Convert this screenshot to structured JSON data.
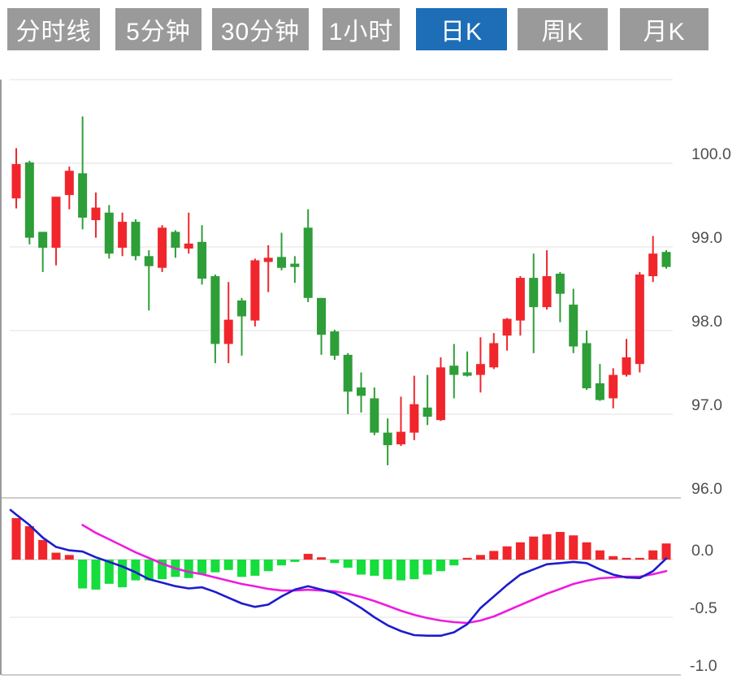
{
  "toolbar": {
    "tabs": [
      {
        "label": "分时线",
        "active": false
      },
      {
        "label": "5分钟",
        "active": false
      },
      {
        "label": "30分钟",
        "active": false
      },
      {
        "label": "1小时",
        "active": false
      },
      {
        "label": "日K",
        "active": true
      },
      {
        "label": "周K",
        "active": false
      },
      {
        "label": "月K",
        "active": false
      }
    ]
  },
  "colors": {
    "tab_bg": "#9a9a9a",
    "tab_active_bg": "#1d6eb7",
    "tab_text": "#ffffff",
    "candle_up": "#f0262c",
    "candle_down": "#2e9e38",
    "macd_bar_up": "#f0262c",
    "macd_bar_down": "#14dd3c",
    "dif_line": "#1c1ccd",
    "dea_line": "#ee1bdf",
    "grid": "#e2e2e2",
    "panel_border": "#cccccc",
    "left_border": "#9a9a9a",
    "axis_text": "#4f4f4f"
  },
  "chart_data": {
    "type": "candlestick+macd",
    "selected_timeframe": "日K",
    "legend_position": "none",
    "grid": "horizontal-only",
    "price_axis": {
      "tick_labels": [
        "100.0",
        "99.0",
        "98.0",
        "97.0",
        "96.0"
      ],
      "tick_values": [
        100.0,
        99.0,
        98.0,
        97.0,
        96.0
      ],
      "ylim": [
        95.9,
        101.0
      ]
    },
    "candles_ohlc_order": [
      "open",
      "close",
      "high",
      "low"
    ],
    "candles": [
      [
        99.58,
        99.99,
        100.18,
        99.46
      ],
      [
        100.01,
        99.11,
        100.03,
        99.03
      ],
      [
        99.18,
        98.99,
        99.18,
        98.7
      ],
      [
        98.99,
        99.6,
        99.6,
        98.78
      ],
      [
        99.62,
        99.91,
        99.96,
        99.45
      ],
      [
        99.88,
        99.35,
        100.56,
        99.21
      ],
      [
        99.32,
        99.47,
        99.65,
        99.11
      ],
      [
        99.41,
        98.92,
        99.5,
        98.86
      ],
      [
        98.99,
        99.3,
        99.41,
        98.89
      ],
      [
        99.3,
        98.89,
        99.33,
        98.84
      ],
      [
        98.89,
        98.77,
        98.96,
        98.24
      ],
      [
        98.75,
        99.23,
        99.26,
        98.7
      ],
      [
        99.18,
        98.99,
        99.2,
        98.87
      ],
      [
        98.98,
        99.04,
        99.41,
        98.92
      ],
      [
        99.06,
        98.62,
        99.26,
        98.55
      ],
      [
        98.65,
        97.84,
        98.67,
        97.61
      ],
      [
        97.84,
        98.13,
        98.58,
        97.61
      ],
      [
        98.36,
        98.17,
        98.39,
        97.7
      ],
      [
        98.12,
        98.84,
        98.86,
        98.05
      ],
      [
        98.82,
        98.87,
        99.02,
        98.46
      ],
      [
        98.88,
        98.75,
        99.17,
        98.72
      ],
      [
        98.8,
        98.76,
        98.89,
        98.57
      ],
      [
        99.23,
        98.39,
        99.45,
        98.34
      ],
      [
        98.39,
        97.95,
        98.39,
        97.71
      ],
      [
        97.99,
        97.7,
        98.01,
        97.65
      ],
      [
        97.71,
        97.27,
        97.73,
        97.0
      ],
      [
        97.32,
        97.22,
        97.5,
        97.02
      ],
      [
        97.19,
        96.78,
        97.32,
        96.75
      ],
      [
        96.78,
        96.63,
        96.95,
        96.39
      ],
      [
        96.64,
        96.79,
        97.21,
        96.62
      ],
      [
        96.78,
        97.12,
        97.46,
        96.69
      ],
      [
        97.08,
        96.97,
        97.47,
        96.87
      ],
      [
        96.93,
        97.56,
        97.68,
        96.92
      ],
      [
        97.58,
        97.47,
        97.84,
        97.19
      ],
      [
        97.5,
        97.46,
        97.75,
        97.45
      ],
      [
        97.47,
        97.6,
        97.92,
        97.26
      ],
      [
        97.56,
        97.85,
        97.97,
        97.54
      ],
      [
        97.94,
        98.14,
        98.15,
        97.76
      ],
      [
        98.12,
        98.63,
        98.65,
        97.94
      ],
      [
        98.63,
        98.28,
        98.92,
        97.73
      ],
      [
        98.28,
        98.65,
        98.96,
        98.25
      ],
      [
        98.68,
        98.44,
        98.7,
        98.1
      ],
      [
        98.31,
        97.81,
        98.5,
        97.73
      ],
      [
        97.85,
        97.31,
        98.0,
        97.29
      ],
      [
        97.37,
        97.17,
        97.6,
        97.16
      ],
      [
        97.19,
        97.47,
        97.55,
        97.07
      ],
      [
        97.47,
        97.68,
        97.9,
        97.45
      ],
      [
        97.6,
        98.67,
        98.7,
        97.5
      ],
      [
        98.65,
        98.92,
        99.13,
        98.58
      ],
      [
        98.94,
        98.76,
        98.96,
        98.74
      ]
    ],
    "macd_axis": {
      "tick_labels": [
        "0.0",
        "-0.5",
        "-1.0"
      ],
      "tick_values": [
        0.0,
        -0.5,
        -1.0
      ],
      "ylim": [
        0.55,
        -1.0
      ]
    },
    "macd_histogram": [
      0.36,
      0.29,
      0.17,
      0.06,
      0.04,
      -0.25,
      -0.26,
      -0.21,
      -0.24,
      -0.18,
      -0.18,
      -0.17,
      -0.15,
      -0.16,
      -0.13,
      -0.11,
      -0.09,
      -0.15,
      -0.14,
      -0.1,
      -0.05,
      -0.02,
      0.05,
      0.02,
      -0.03,
      -0.07,
      -0.13,
      -0.14,
      -0.17,
      -0.18,
      -0.17,
      -0.13,
      -0.1,
      -0.05,
      0.015,
      0.04,
      0.075,
      0.115,
      0.15,
      0.2,
      0.22,
      0.24,
      0.21,
      0.15,
      0.08,
      0.03,
      0.015,
      0.015,
      0.08,
      0.14
    ],
    "dif_line": {
      "lead_in_value": 0.43,
      "values": [
        0.39,
        0.3,
        0.19,
        0.11,
        0.08,
        0.07,
        0.02,
        -0.02,
        -0.06,
        -0.11,
        -0.17,
        -0.2,
        -0.23,
        -0.25,
        -0.24,
        -0.28,
        -0.33,
        -0.38,
        -0.41,
        -0.39,
        -0.32,
        -0.26,
        -0.23,
        -0.26,
        -0.29,
        -0.35,
        -0.42,
        -0.5,
        -0.57,
        -0.62,
        -0.655,
        -0.66,
        -0.66,
        -0.63,
        -0.56,
        -0.42,
        -0.32,
        -0.22,
        -0.13,
        -0.085,
        -0.04,
        -0.03,
        -0.02,
        -0.03,
        -0.085,
        -0.13,
        -0.155,
        -0.16,
        -0.1,
        0.01
      ]
    },
    "dea_line": {
      "start_index": 5,
      "values": [
        0.3,
        0.232,
        0.176,
        0.12,
        0.063,
        0.014,
        -0.035,
        -0.077,
        -0.106,
        -0.127,
        -0.155,
        -0.183,
        -0.211,
        -0.232,
        -0.254,
        -0.268,
        -0.268,
        -0.261,
        -0.268,
        -0.275,
        -0.296,
        -0.324,
        -0.359,
        -0.401,
        -0.444,
        -0.479,
        -0.507,
        -0.528,
        -0.542,
        -0.549,
        -0.528,
        -0.493,
        -0.444,
        -0.394,
        -0.345,
        -0.296,
        -0.254,
        -0.211,
        -0.183,
        -0.162,
        -0.155,
        -0.148,
        -0.148,
        -0.127,
        -0.099
      ]
    }
  }
}
